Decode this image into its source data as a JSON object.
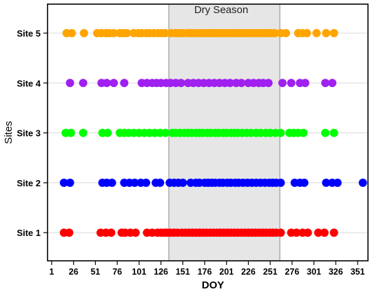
{
  "chart_data": {
    "type": "scatter",
    "title": "",
    "xlabel": "DOY",
    "ylabel": "Sites",
    "xlim": [
      1,
      366
    ],
    "x_ticks": [
      1,
      26,
      51,
      76,
      101,
      126,
      151,
      176,
      201,
      226,
      251,
      276,
      301,
      326,
      351
    ],
    "categories": [
      "Site 1",
      "Site 2",
      "Site 3",
      "Site 4",
      "Site 5"
    ],
    "grid": true,
    "shaded_region": {
      "label": "Dry Season",
      "x_start": 135,
      "x_end": 262,
      "color": "#e6e6e6"
    },
    "series": [
      {
        "category": "Site 1",
        "color": "#ff0000",
        "x": [
          15,
          21,
          57,
          63,
          69,
          81,
          85,
          91,
          97,
          110,
          116,
          122,
          126,
          130,
          133,
          137,
          141,
          145,
          150,
          154,
          158,
          162,
          166,
          170,
          174,
          178,
          182,
          186,
          190,
          194,
          198,
          202,
          206,
          210,
          214,
          218,
          222,
          226,
          230,
          234,
          238,
          242,
          246,
          250,
          254,
          258,
          263,
          275,
          281,
          288,
          294,
          306,
          313,
          324
        ]
      },
      {
        "category": "Site 2",
        "color": "#0000ff",
        "x": [
          15,
          22,
          59,
          64,
          70,
          84,
          90,
          96,
          103,
          109,
          120,
          125,
          136,
          141,
          146,
          151,
          160,
          166,
          170,
          176,
          180,
          184,
          188,
          193,
          197,
          202,
          206,
          211,
          215,
          220,
          225,
          230,
          235,
          240,
          245,
          250,
          254,
          258,
          263,
          279,
          285,
          290,
          315,
          322,
          328,
          357
        ]
      },
      {
        "category": "Site 3",
        "color": "#00ff00",
        "x": [
          17,
          23,
          37,
          59,
          65,
          79,
          84,
          89,
          95,
          101,
          107,
          113,
          119,
          125,
          131,
          139,
          143,
          148,
          153,
          157,
          161,
          166,
          170,
          174,
          179,
          183,
          188,
          192,
          197,
          201,
          206,
          210,
          214,
          219,
          224,
          229,
          235,
          240,
          246,
          251,
          257,
          263,
          273,
          278,
          283,
          289,
          314,
          324
        ]
      },
      {
        "category": "Site 4",
        "color": "#a020f0",
        "x": [
          22,
          37,
          58,
          64,
          72,
          84,
          104,
          110,
          116,
          121,
          126,
          132,
          137,
          143,
          149,
          157,
          163,
          169,
          175,
          181,
          187,
          193,
          199,
          205,
          212,
          218,
          226,
          232,
          238,
          243,
          249,
          265,
          275,
          285,
          291,
          314,
          322
        ]
      },
      {
        "category": "Site 5",
        "color": "#ffa500",
        "x": [
          18,
          24,
          38,
          53,
          58,
          63,
          67,
          72,
          79,
          83,
          87,
          95,
          100,
          104,
          109,
          113,
          118,
          123,
          127,
          131,
          138,
          143,
          147,
          151,
          156,
          160,
          164,
          168,
          172,
          176,
          180,
          184,
          188,
          192,
          196,
          200,
          204,
          208,
          212,
          216,
          220,
          224,
          228,
          232,
          236,
          240,
          244,
          248,
          252,
          256,
          263,
          269,
          283,
          288,
          293,
          304,
          315,
          324
        ]
      }
    ]
  }
}
